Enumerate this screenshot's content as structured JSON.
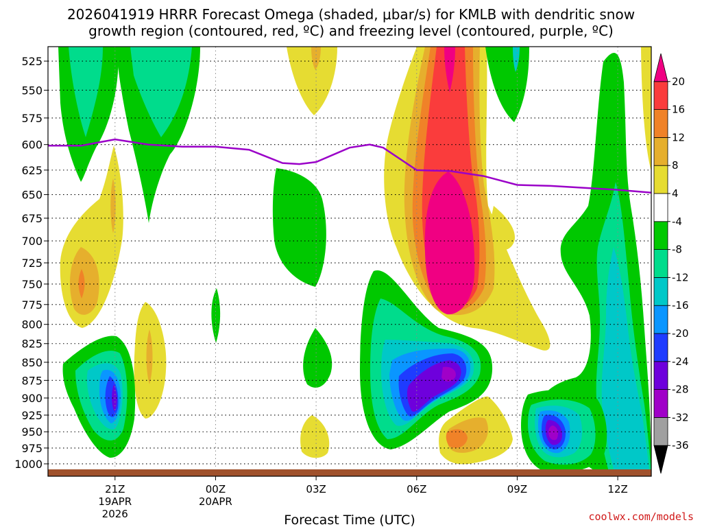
{
  "title_line1": "2026041919 HRRR Forecast Omega (shaded, μbar/s) for KMLB with dendritic snow",
  "title_line2": "growth region (contoured, red, ºC) and freezing level (contoured, purple, ºC)",
  "credit": "coolwx.com/models",
  "colors": {
    "freezing_line": "#9a00c8",
    "ground": "#a0522d",
    "grid": "#888888"
  },
  "chart_data": {
    "type": "heatmap",
    "title": "2026041919 HRRR Forecast Omega (shaded, μbar/s) for KMLB with dendritic snow growth region (contoured, red, ºC) and freezing level (contoured, purple, ºC)",
    "xlabel": "Forecast Time (UTC)",
    "ylabel": "",
    "y_axis": {
      "unit": "hPa",
      "scale": "log",
      "reversed": true,
      "ylim": [
        1020,
        513
      ]
    },
    "yticks": [
      525,
      550,
      575,
      600,
      625,
      650,
      675,
      700,
      725,
      750,
      775,
      800,
      825,
      850,
      875,
      900,
      925,
      950,
      975,
      1000
    ],
    "x_axis": {
      "unit": "hours after 2026-04-19 19Z",
      "xlim": [
        0,
        18
      ]
    },
    "xticks": [
      {
        "h": 2,
        "label": "21Z",
        "date": "19APR",
        "year": "2026"
      },
      {
        "h": 5,
        "label": "00Z",
        "date": "20APR",
        "year": ""
      },
      {
        "h": 8,
        "label": "03Z",
        "date": "",
        "year": ""
      },
      {
        "h": 11,
        "label": "06Z",
        "date": "",
        "year": ""
      },
      {
        "h": 14,
        "label": "09Z",
        "date": "",
        "year": ""
      },
      {
        "h": 17,
        "label": "12Z",
        "date": "",
        "year": ""
      }
    ],
    "grid": true,
    "colorbar": {
      "levels": [
        -36,
        -32,
        -28,
        -24,
        -20,
        -16,
        -12,
        -8,
        -4,
        4,
        8,
        12,
        16,
        20
      ],
      "labels": [
        "-36",
        "-32",
        "-28",
        "-24",
        "-20",
        "-16",
        "-12",
        "-8",
        "-4",
        "4",
        "8",
        "12",
        "16",
        "20"
      ],
      "bands": [
        {
          "range": "< -36",
          "color": "#000000"
        },
        {
          "range": "-36 to -32",
          "color": "#a0a0a0"
        },
        {
          "range": "-32 to -28",
          "color": "#a000c8"
        },
        {
          "range": "-28 to -24",
          "color": "#6e00dc"
        },
        {
          "range": "-24 to -20",
          "color": "#1e3cff"
        },
        {
          "range": "-20 to -16",
          "color": "#0a96ff"
        },
        {
          "range": "-16 to -12",
          "color": "#00c8c8"
        },
        {
          "range": "-12 to -8",
          "color": "#00dc8c"
        },
        {
          "range": "-8 to -4",
          "color": "#00c800"
        },
        {
          "range": "-4 to 4",
          "color": "#ffffff"
        },
        {
          "range": "4 to 8",
          "color": "#e6dc32"
        },
        {
          "range": "8 to 12",
          "color": "#e6af2d"
        },
        {
          "range": "12 to 16",
          "color": "#f08228"
        },
        {
          "range": "16 to 20",
          "color": "#fa3c3c"
        },
        {
          "range": "> 20",
          "color": "#f00082"
        }
      ]
    },
    "freezing_level": {
      "name": "freezing level (ºC)",
      "color": "#9a00c8",
      "x": [
        0,
        1,
        1.5,
        2,
        3,
        4,
        5,
        6,
        7,
        7.5,
        8,
        9,
        9.6,
        10,
        11,
        12,
        13,
        14,
        15,
        16,
        17,
        18
      ],
      "p": [
        601,
        601,
        598,
        595,
        600,
        602,
        602,
        605,
        618,
        619,
        617,
        603,
        600,
        603,
        625,
        626,
        631,
        640,
        641,
        643,
        645,
        648
      ]
    },
    "omega_features": [
      {
        "kind": "upward",
        "x": [
          2,
          2.4
        ],
        "p": [
          870,
          930
        ],
        "peak": -28
      },
      {
        "kind": "upward",
        "x": [
          11,
          12.5
        ],
        "p": [
          850,
          950
        ],
        "peak": -28
      },
      {
        "kind": "upward",
        "x": [
          15,
          16
        ],
        "p": [
          930,
          980
        ],
        "peak": -28
      },
      {
        "kind": "upward",
        "x": [
          0.5,
          4.5
        ],
        "p": [
          525,
          660
        ],
        "peak": -12
      },
      {
        "kind": "upward",
        "x": [
          15.7,
          18
        ],
        "p": [
          525,
          1000
        ],
        "peak": -16
      },
      {
        "kind": "downward",
        "x": [
          11.5,
          13
        ],
        "p": [
          525,
          800
        ],
        "peak": 24
      },
      {
        "kind": "downward",
        "x": [
          0.5,
          2.5
        ],
        "p": [
          620,
          800
        ],
        "peak": 10
      },
      {
        "kind": "downward",
        "x": [
          12.5,
          14
        ],
        "p": [
          920,
          1000
        ],
        "peak": 14
      }
    ]
  }
}
